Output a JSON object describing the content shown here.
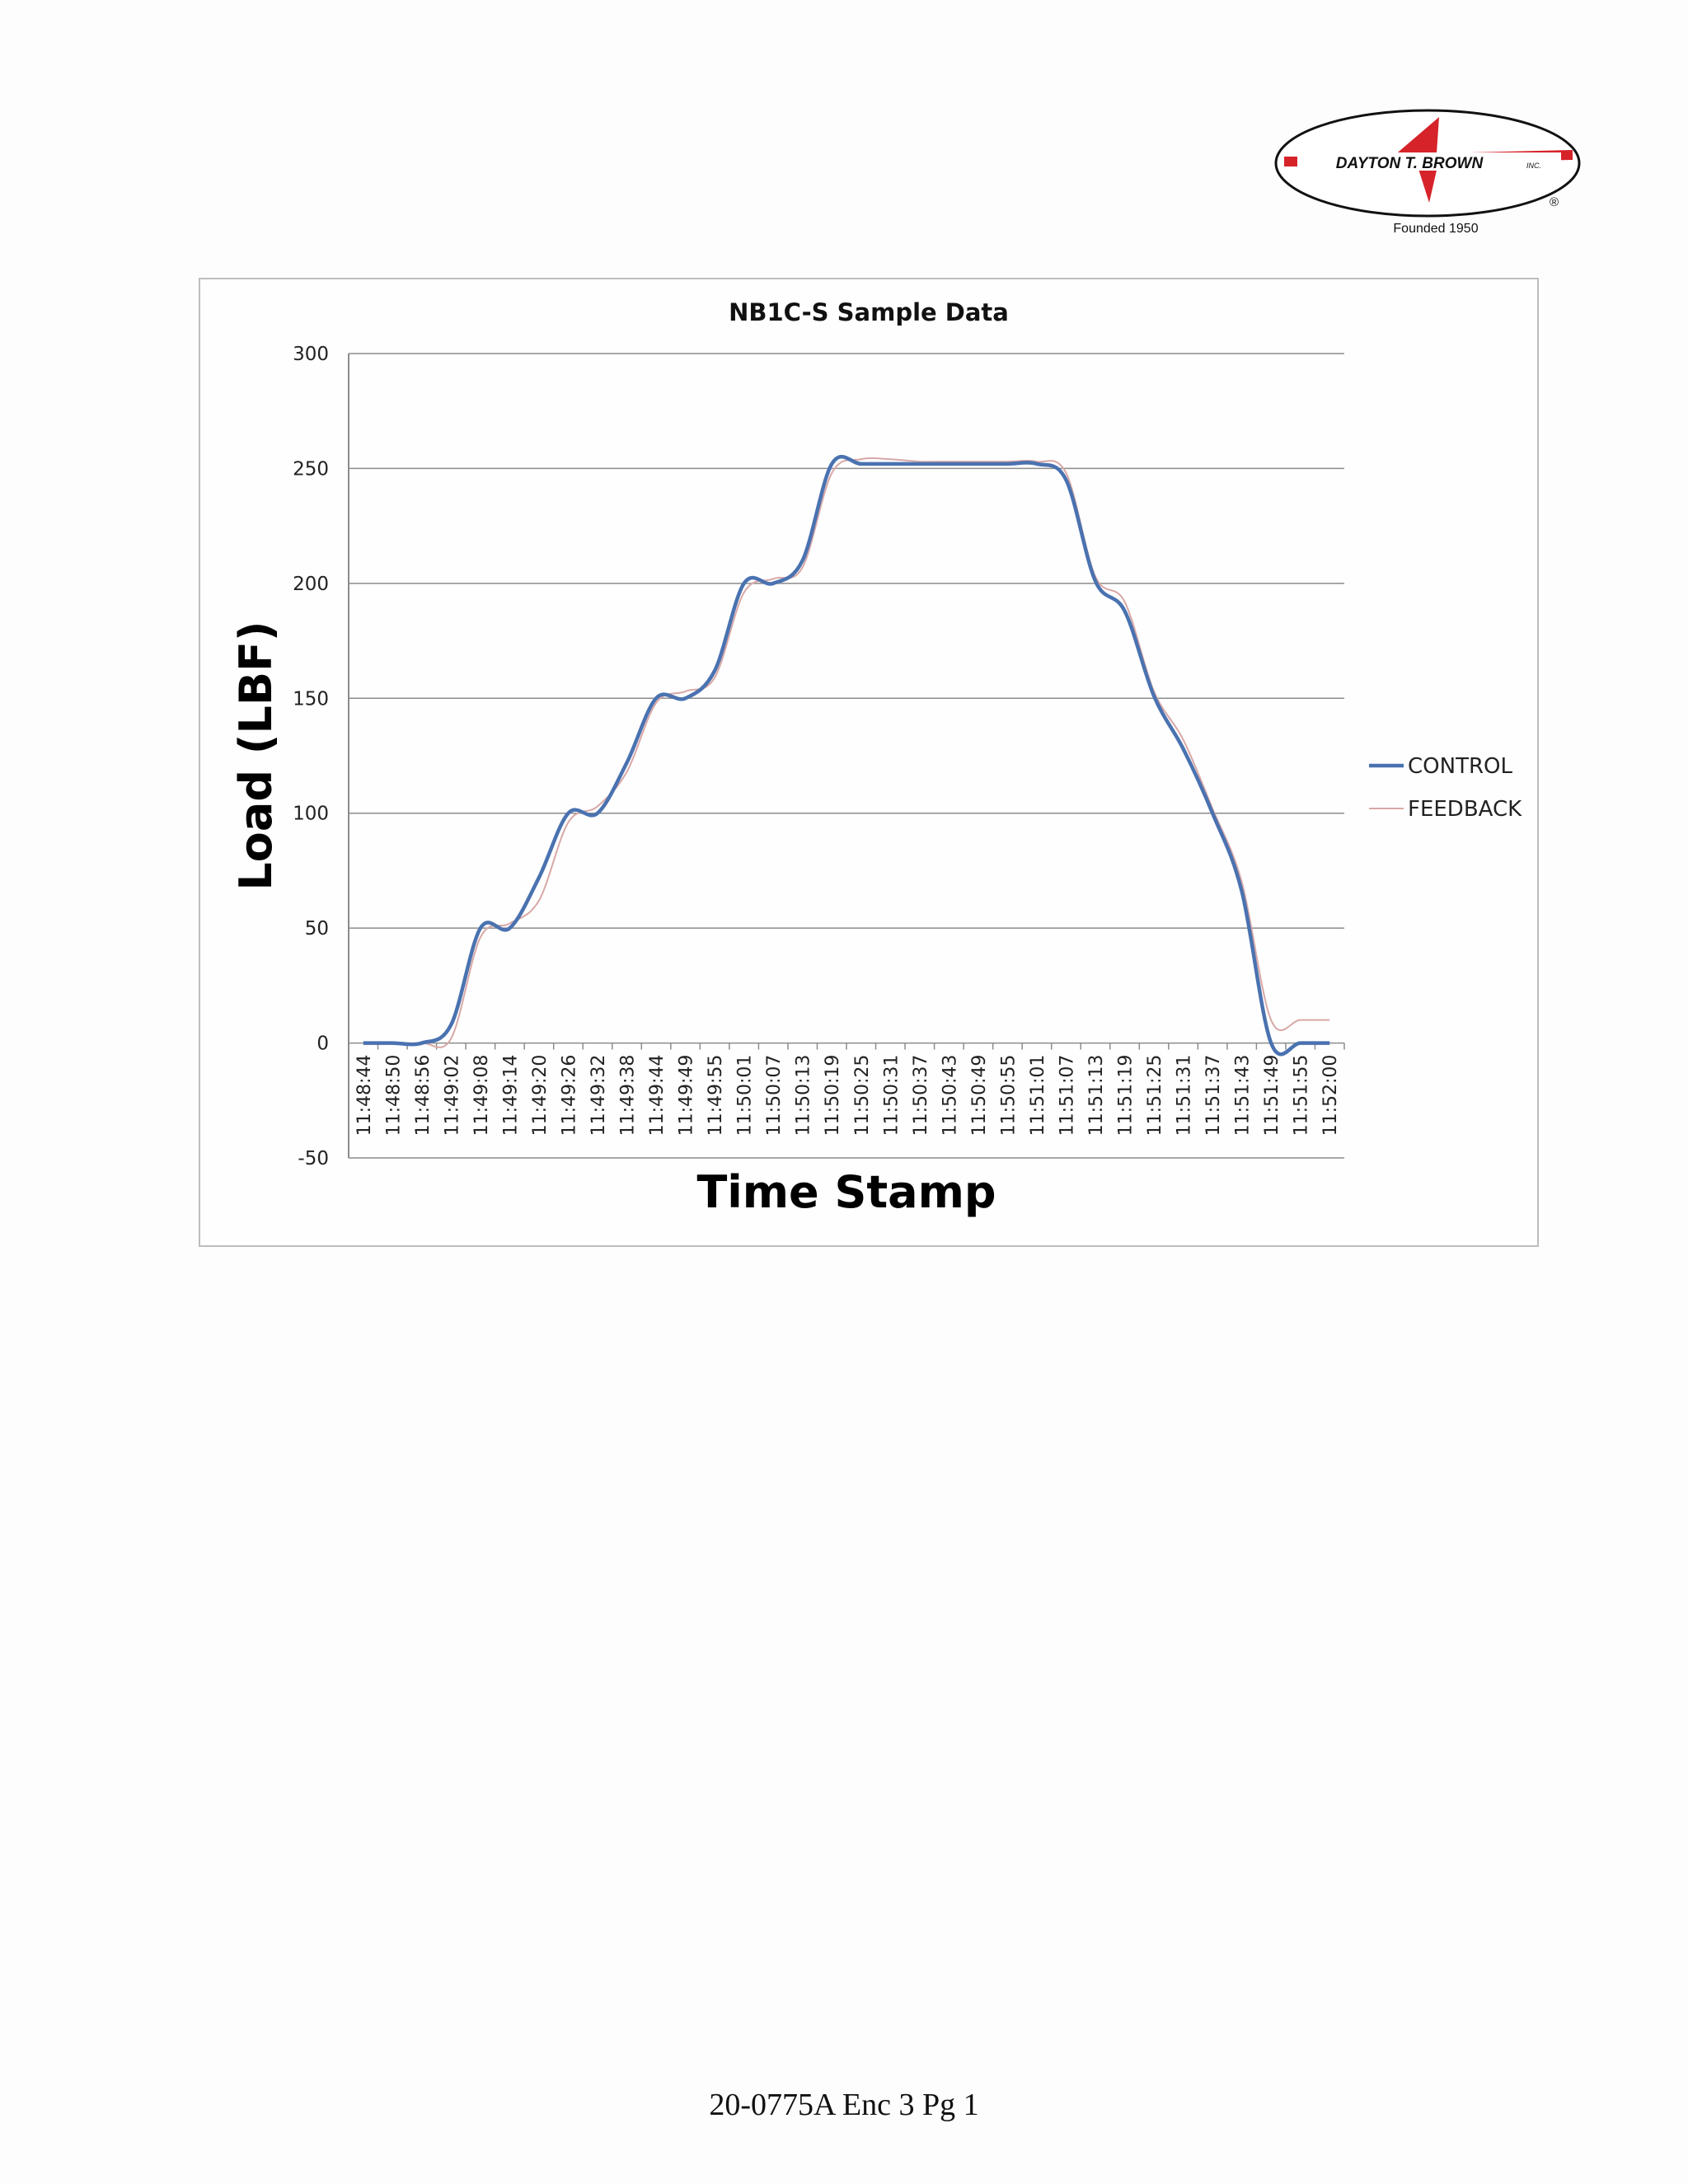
{
  "logo": {
    "brand": "DAYTON T. BROWN",
    "suffix": "INC.",
    "registered": "®",
    "tagline": "Founded 1950"
  },
  "chart_data": {
    "type": "line",
    "title": "NB1C-S Sample Data",
    "xlabel": "Time Stamp",
    "ylabel": "Load (LBF)",
    "ylim": [
      -50,
      300
    ],
    "yticks": [
      -50,
      0,
      50,
      100,
      150,
      200,
      250,
      300
    ],
    "grid": true,
    "legend_position": "right",
    "categories": [
      "11:48:44",
      "11:48:50",
      "11:48:56",
      "11:49:02",
      "11:49:08",
      "11:49:14",
      "11:49:20",
      "11:49:26",
      "11:49:32",
      "11:49:38",
      "11:49:44",
      "11:49:49",
      "11:49:55",
      "11:50:01",
      "11:50:07",
      "11:50:13",
      "11:50:19",
      "11:50:25",
      "11:50:31",
      "11:50:37",
      "11:50:43",
      "11:50:49",
      "11:50:55",
      "11:51:01",
      "11:51:07",
      "11:51:13",
      "11:51:19",
      "11:51:25",
      "11:51:31",
      "11:51:37",
      "11:51:43",
      "11:51:49",
      "11:51:55",
      "11:52:00"
    ],
    "series": [
      {
        "name": "CONTROL",
        "color": "#4a72b0",
        "values": [
          0,
          0,
          0,
          8,
          50,
          50,
          72,
          100,
          100,
          122,
          150,
          150,
          162,
          200,
          200,
          210,
          252,
          252,
          252,
          252,
          252,
          252,
          252,
          252,
          245,
          201,
          188,
          151,
          128,
          100,
          66,
          0,
          0,
          0
        ]
      },
      {
        "name": "FEEDBACK",
        "color": "#d8a8a6",
        "values": [
          0,
          0,
          0,
          2,
          46,
          52,
          62,
          96,
          103,
          118,
          148,
          153,
          159,
          196,
          202,
          207,
          248,
          254,
          254,
          253,
          253,
          253,
          253,
          253,
          248,
          203,
          192,
          153,
          132,
          102,
          70,
          10,
          10,
          10
        ]
      }
    ]
  },
  "footer": {
    "text": "20-0775A Enc 3 Pg 1"
  }
}
